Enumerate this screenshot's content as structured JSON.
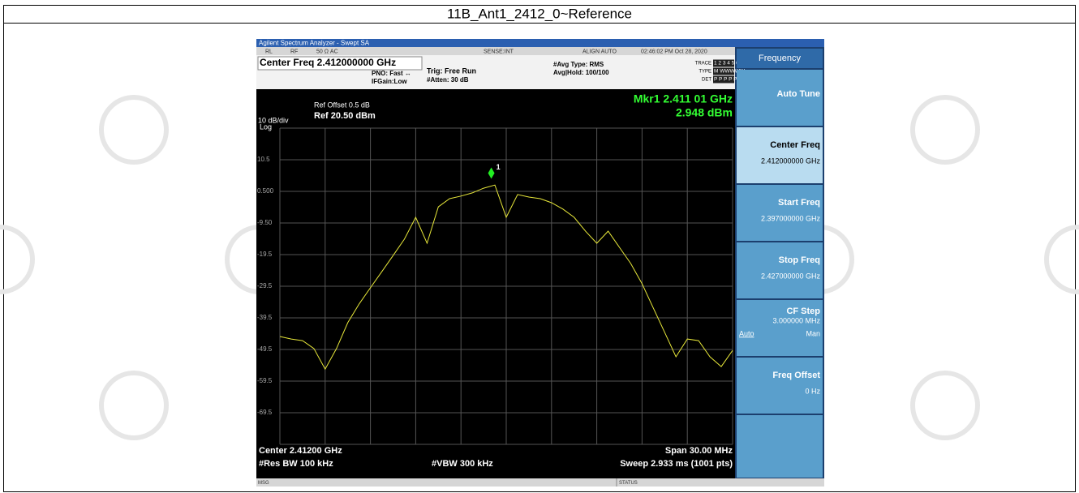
{
  "title": "11B_Ant1_2412_0~Reference",
  "window_title": "Agilent Spectrum Analyzer - Swept SA",
  "status_row": [
    "RL",
    "RF",
    "50 Ω  AC",
    "SENSE:INT",
    "ALIGN AUTO",
    "02:46:02 PM Oct 28, 2020"
  ],
  "header": {
    "center_freq": "Center Freq 2.412000000 GHz",
    "pno": "PNO: Fast ↔",
    "ifgain": "IFGain:Low",
    "trig": "Trig: Free Run",
    "atten": "#Atten: 30 dB",
    "avg_type": "#Avg Type: RMS",
    "avg_hold": "Avg|Hold: 100/100",
    "trace_label": "TRACE",
    "trace_nums": "1 2 3 4 5 6",
    "type_label": "TYPE",
    "type_vals": "M WWWWW",
    "det_label": "DET",
    "det_vals": "P P P P P P"
  },
  "display": {
    "ref_offset": "Ref Offset 0.5 dB",
    "scale": "10 dB/div",
    "ref_level": "Ref 20.50 dBm",
    "log": "Log",
    "marker_label": "Mkr1 2.411 01 GHz",
    "marker_value": "2.948 dBm",
    "marker_id": "1",
    "yticks": [
      10.5,
      {
        "value": 0.5,
        "label": "0.500"
      },
      {
        "value": -9.5,
        "label": "-9.50"
      },
      -19.5,
      -29.5,
      -39.5,
      -49.5,
      -59.5,
      -69.5
    ]
  },
  "trace": {
    "xlim": [
      2.397,
      2.427
    ],
    "ylim": [
      -79.5,
      20.5
    ],
    "x": [
      2.397,
      2.39775,
      2.3985,
      2.39925,
      2.4,
      2.40075,
      2.4015,
      2.40225,
      2.403,
      2.40375,
      2.4045,
      2.40525,
      2.406,
      2.40675,
      2.4075,
      2.40825,
      2.409,
      2.40975,
      2.4105,
      2.41125,
      2.412,
      2.41275,
      2.4135,
      2.41425,
      2.415,
      2.41575,
      2.4165,
      2.41725,
      2.418,
      2.41875,
      2.4195,
      2.42025,
      2.421,
      2.42175,
      2.4225,
      2.42325,
      2.424,
      2.42475,
      2.4255,
      2.42625,
      2.427
    ],
    "y": [
      -45.4,
      -46.2,
      -46.7,
      -49.2,
      -55.7,
      -49.2,
      -41.0,
      -35.1,
      -30.0,
      -24.9,
      -19.8,
      -14.6,
      -7.7,
      -15.9,
      -4.4,
      -1.8,
      -1.0,
      0.0,
      1.5,
      2.5,
      -7.7,
      -0.5,
      -1.3,
      -1.8,
      -3.1,
      -5.1,
      -7.7,
      -12.1,
      -15.9,
      -12.1,
      -17.2,
      -22.3,
      -28.7,
      -36.4,
      -44.1,
      -51.8,
      -46.2,
      -46.7,
      -51.8,
      -54.9,
      -49.8
    ],
    "marker": {
      "x": 2.41101,
      "y": 2.948
    }
  },
  "footer": {
    "center": "Center 2.41200 GHz",
    "span": "Span 30.00 MHz",
    "rbw": "#Res BW 100 kHz",
    "vbw": "#VBW 300 kHz",
    "sweep": "Sweep 2.933 ms (1001 pts)"
  },
  "statusbar": {
    "msg": "MSG",
    "status": "STATUS"
  },
  "softkeys": {
    "menu": "Frequency",
    "keys": [
      {
        "label": "Auto Tune"
      },
      {
        "label": "Center Freq",
        "value": "2.412000000 GHz"
      },
      {
        "label": "Start Freq",
        "value": "2.397000000 GHz"
      },
      {
        "label": "Stop Freq",
        "value": "2.427000000 GHz"
      },
      {
        "label": "CF Step",
        "value": "3.000000 MHz",
        "auto": "Auto",
        "man": "Man"
      },
      {
        "label": "Freq Offset",
        "value": "0 Hz"
      }
    ]
  }
}
